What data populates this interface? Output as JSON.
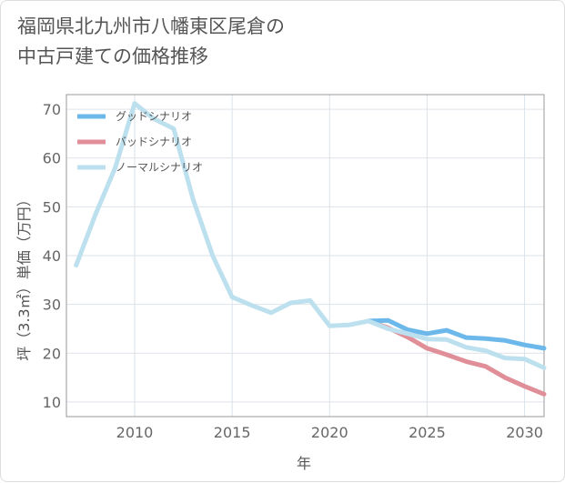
{
  "title_line1": "福岡県北九州市八幡東区尾倉の",
  "title_line2": "中古戸建ての価格推移",
  "chart_data": {
    "type": "line",
    "xlabel": "年",
    "ylabel": "坪（3.3㎡）単価（万円）",
    "xlim": [
      2006.5,
      2031
    ],
    "ylim": [
      7,
      73
    ],
    "x_ticks": [
      2010,
      2015,
      2020,
      2025,
      2030
    ],
    "y_ticks": [
      10,
      20,
      30,
      40,
      50,
      60,
      70
    ],
    "grid": true,
    "legend_position": "top-left",
    "series": [
      {
        "name": "グッドシナリオ",
        "color": "#6cb8ea",
        "points": [
          [
            2022,
            26.6
          ],
          [
            2023,
            26.7
          ],
          [
            2024,
            24.8
          ],
          [
            2025,
            24.0
          ],
          [
            2026,
            24.7
          ],
          [
            2027,
            23.2
          ],
          [
            2028,
            23.0
          ],
          [
            2029,
            22.6
          ],
          [
            2030,
            21.7
          ],
          [
            2031,
            21.0
          ]
        ]
      },
      {
        "name": "バッドシナリオ",
        "color": "#e08f98",
        "points": [
          [
            2022,
            26.6
          ],
          [
            2023,
            25.2
          ],
          [
            2024,
            23.3
          ],
          [
            2025,
            21.0
          ],
          [
            2026,
            19.7
          ],
          [
            2027,
            18.3
          ],
          [
            2028,
            17.3
          ],
          [
            2029,
            15.0
          ],
          [
            2030,
            13.2
          ],
          [
            2031,
            11.6
          ]
        ]
      },
      {
        "name": "ノーマルシナリオ",
        "color": "#bde0ef",
        "points": [
          [
            2007,
            38.0
          ],
          [
            2008,
            48.5
          ],
          [
            2009,
            58.0
          ],
          [
            2010,
            71.2
          ],
          [
            2011,
            68.0
          ],
          [
            2012,
            66.0
          ],
          [
            2013,
            51.5
          ],
          [
            2014,
            40.0
          ],
          [
            2015,
            31.5
          ],
          [
            2016,
            29.8
          ],
          [
            2017,
            28.3
          ],
          [
            2018,
            30.3
          ],
          [
            2019,
            30.8
          ],
          [
            2020,
            25.6
          ],
          [
            2021,
            25.8
          ],
          [
            2022,
            26.6
          ],
          [
            2023,
            25.0
          ],
          [
            2024,
            24.0
          ],
          [
            2025,
            22.9
          ],
          [
            2026,
            22.8
          ],
          [
            2027,
            21.2
          ],
          [
            2028,
            20.5
          ],
          [
            2029,
            19.0
          ],
          [
            2030,
            18.8
          ],
          [
            2031,
            17.0
          ]
        ]
      }
    ]
  }
}
